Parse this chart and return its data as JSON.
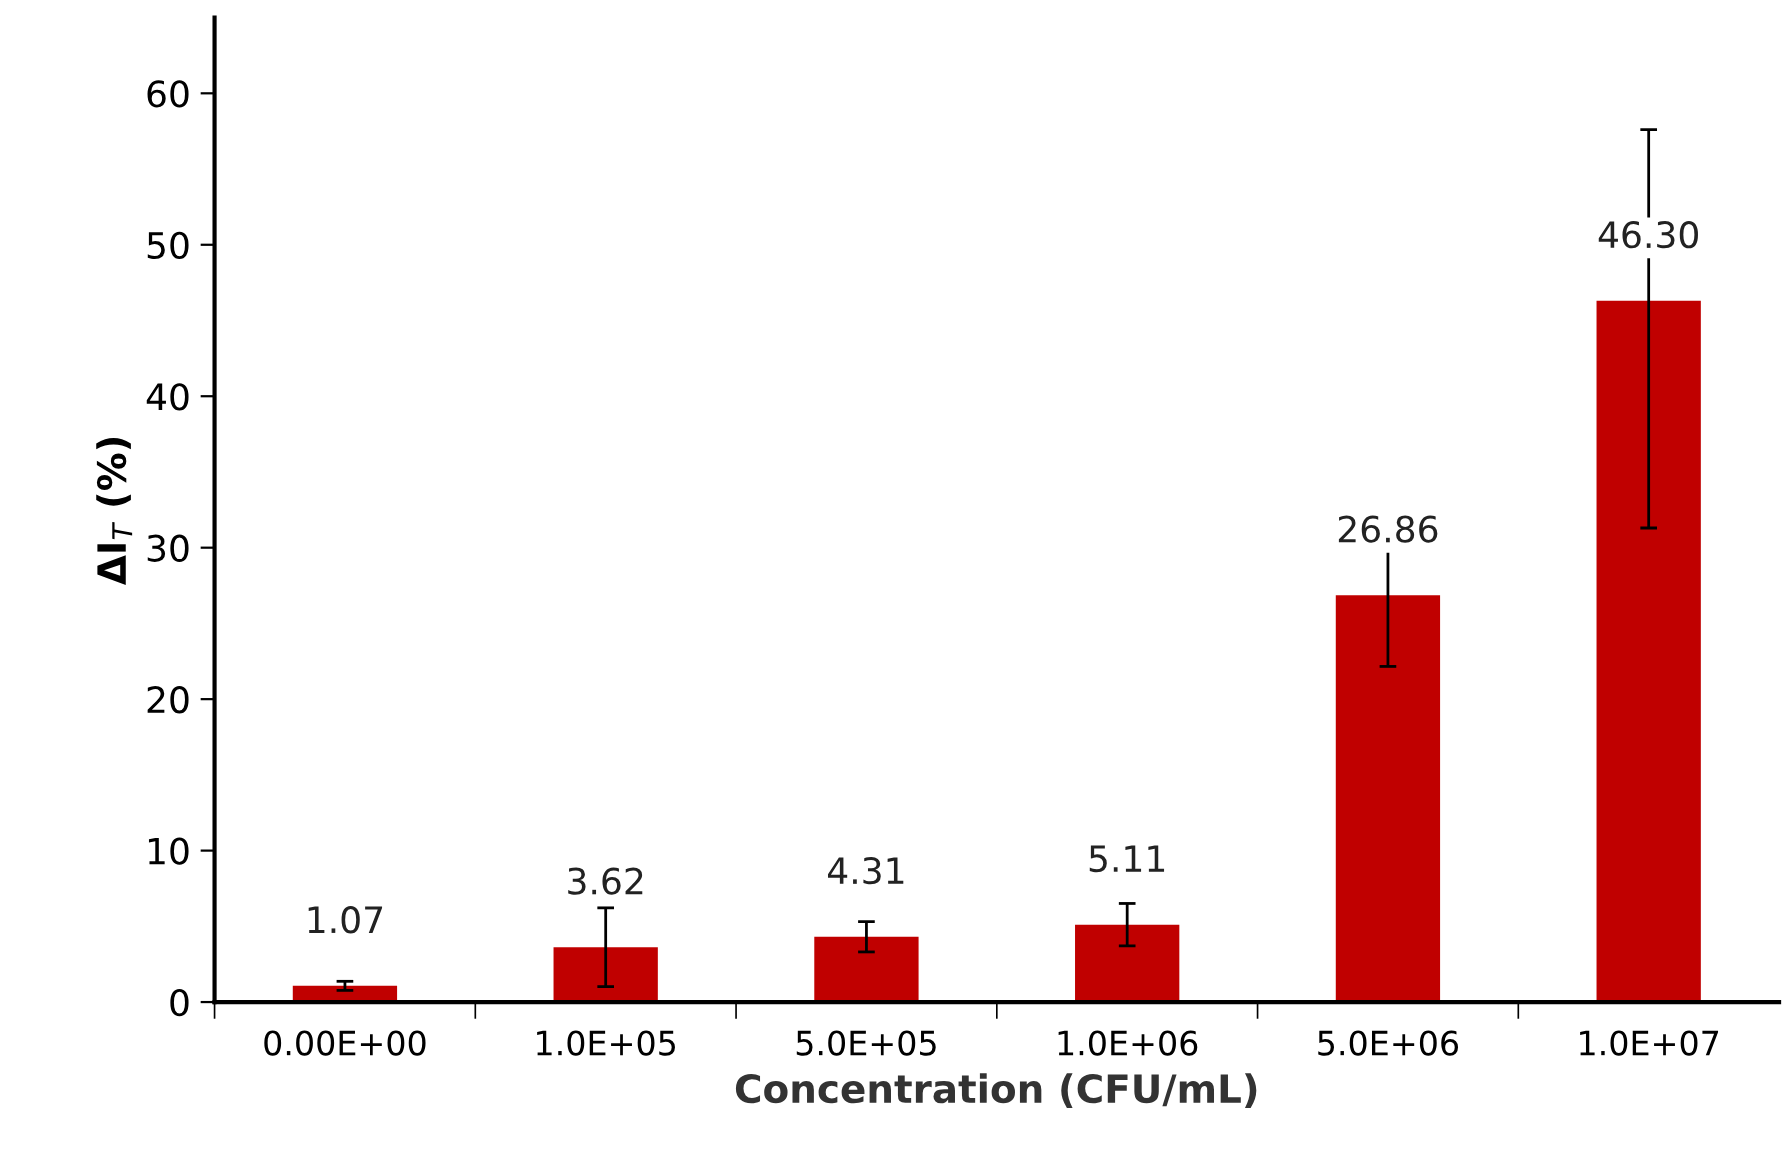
{
  "chart_data": {
    "type": "bar",
    "xlabel": "Concentration (CFU/mL)",
    "ylabel": "ΔI$_{T}$ (%)",
    "categories": [
      "0.00E+00",
      "1.0E+05",
      "5.0E+05",
      "1.0E+06",
      "5.0E+06",
      "1.0E+07"
    ],
    "values": [
      1.07,
      3.62,
      4.31,
      5.11,
      26.86,
      46.3
    ],
    "value_labels": [
      "1.07",
      "3.62",
      "4.31",
      "5.11",
      "26.86",
      "46.30"
    ],
    "errors": [
      0.3,
      2.6,
      1.0,
      1.4,
      4.7,
      [
        31.3,
        57.6
      ]
    ],
    "color": "#c00000",
    "ylim": [
      0,
      65
    ],
    "yticks": [
      0,
      10,
      20,
      30,
      40,
      50,
      60
    ],
    "grid": false,
    "legend": false
  }
}
